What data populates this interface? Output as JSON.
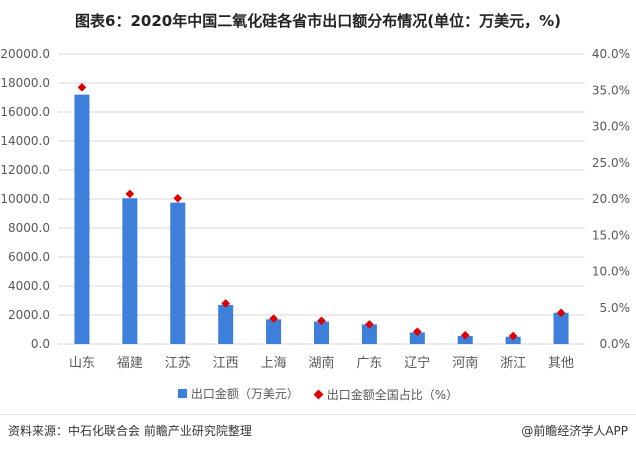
{
  "title": "图表6：2020年中国二氧化硅各省市出口额分布情况(单位：万美元，%)",
  "legend": {
    "bar_label": "出口金额（万美元）",
    "point_label": "出口金额全国占比（%）"
  },
  "footer": {
    "source": "资料来源：中石化联合会 前瞻产业研究院整理",
    "brand": "@前瞻经济学人APP"
  },
  "colors": {
    "bar": "#3d7fdb",
    "point": "#e00000",
    "grid": "#d9d9d9"
  },
  "chart_data": {
    "type": "bar",
    "categories": [
      "山东",
      "福建",
      "江苏",
      "江西",
      "上海",
      "湖南",
      "广东",
      "辽宁",
      "河南",
      "浙江",
      "其他"
    ],
    "series": [
      {
        "name": "出口金额（万美元）",
        "type": "bar",
        "axis": "left",
        "values": [
          17200,
          10050,
          9750,
          2700,
          1700,
          1550,
          1350,
          800,
          550,
          500,
          2150
        ]
      },
      {
        "name": "出口金额全国占比（%）",
        "type": "scatter",
        "axis": "right",
        "values": [
          35.4,
          20.7,
          20.1,
          5.6,
          3.5,
          3.2,
          2.7,
          1.7,
          1.2,
          1.1,
          4.3
        ]
      }
    ],
    "ylim_left": [
      0,
      20000
    ],
    "ylim_right": [
      0,
      40
    ],
    "yticks_left": [
      "0.0",
      "2000.0",
      "4000.0",
      "6000.0",
      "8000.0",
      "10000.0",
      "12000.0",
      "14000.0",
      "16000.0",
      "18000.0",
      "20000.0"
    ],
    "yticks_right": [
      "0.0%",
      "5.0%",
      "10.0%",
      "15.0%",
      "20.0%",
      "25.0%",
      "30.0%",
      "35.0%",
      "40.0%"
    ],
    "grid": true,
    "legend_position": "bottom"
  }
}
